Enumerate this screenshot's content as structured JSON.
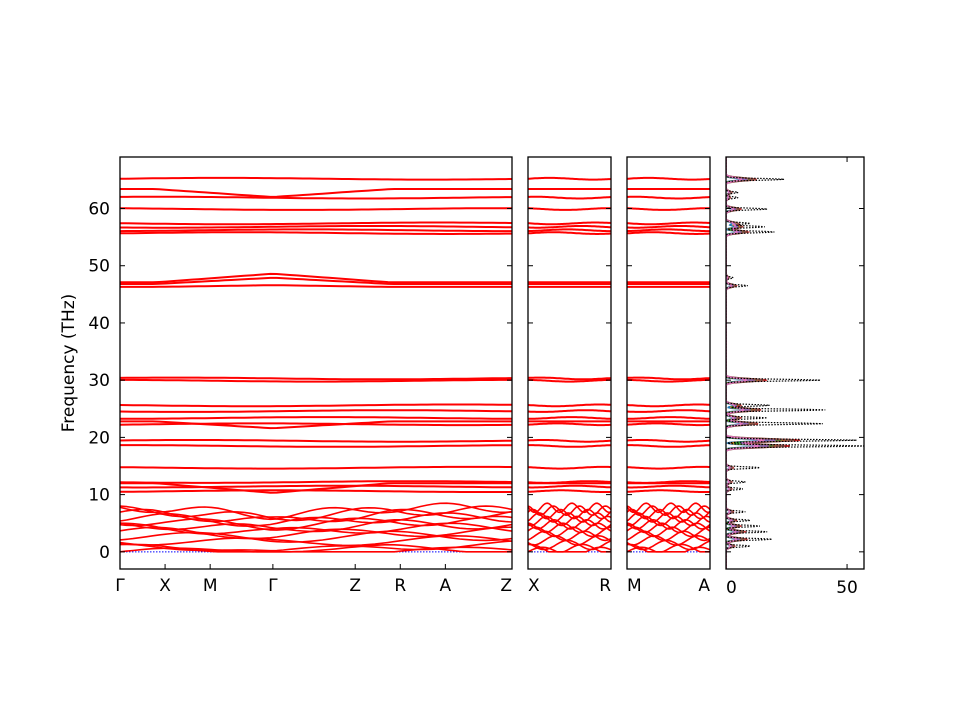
{
  "chart_data": {
    "type": "line",
    "ylabel": "Frequency (THz)",
    "ylim": [
      -3,
      69
    ],
    "yticks": [
      0,
      10,
      20,
      30,
      40,
      50,
      60
    ],
    "band_color": "#ff0000",
    "zero_line_color": "#0000ff",
    "panels": [
      {
        "id": "path-1",
        "xticks": [
          {
            "label": "Γ",
            "pos": 0.0
          },
          {
            "label": "X",
            "pos": 0.115
          },
          {
            "label": "M",
            "pos": 0.23
          },
          {
            "label": "Γ",
            "pos": 0.39
          },
          {
            "label": "Z",
            "pos": 0.6
          },
          {
            "label": "R",
            "pos": 0.715
          },
          {
            "label": "A",
            "pos": 0.83
          },
          {
            "label": "Z",
            "pos": 1.0
          }
        ]
      },
      {
        "id": "path-2",
        "xticks": [
          {
            "label": "X",
            "pos": 0.0
          },
          {
            "label": "R",
            "pos": 1.0
          }
        ]
      },
      {
        "id": "path-3",
        "xticks": [
          {
            "label": "M",
            "pos": 0.0
          },
          {
            "label": "A",
            "pos": 1.0
          }
        ]
      }
    ],
    "bands": {
      "flat": [
        65.2,
        61.9,
        59.9,
        57.4,
        56.8,
        56.2,
        55.7,
        30.3,
        29.9,
        25.6,
        24.6,
        23.4,
        22.3,
        19.4,
        18.5,
        14.7,
        12.2,
        11.4,
        10.6
      ],
      "dispersive": [
        {
          "gamma": 62.0,
          "zone": 63.4
        },
        {
          "gamma": 48.6,
          "zone": 47.1
        },
        {
          "gamma": 47.9,
          "zone": 46.8
        },
        {
          "gamma": 46.6,
          "zone": 46.3
        },
        {
          "gamma": 21.6,
          "zone": 22.8
        },
        {
          "gamma": 10.3,
          "zone": 12.0
        }
      ],
      "low": [
        0.0,
        0.5,
        1.2,
        2.0,
        2.8,
        3.5,
        4.2,
        4.8,
        5.4,
        6.0,
        6.6,
        7.2,
        7.7
      ]
    },
    "dos": {
      "xlim": [
        0,
        57
      ],
      "xticks": [
        0,
        50
      ],
      "total_color": "#000000",
      "partial_colors": [
        "#1f77b4",
        "#ff7f0e",
        "#2ca02c",
        "#d62728",
        "#9467bd",
        "#8c564b",
        "#e377c2"
      ],
      "peaks": [
        {
          "freq": 65.1,
          "total": 24,
          "partial": 21
        },
        {
          "freq": 62.8,
          "total": 5,
          "partial": 4
        },
        {
          "freq": 61.9,
          "total": 5,
          "partial": 3
        },
        {
          "freq": 59.9,
          "total": 17,
          "partial": 10
        },
        {
          "freq": 57.4,
          "total": 10,
          "partial": 8
        },
        {
          "freq": 56.8,
          "total": 16,
          "partial": 11
        },
        {
          "freq": 55.9,
          "total": 20,
          "partial": 15
        },
        {
          "freq": 47.9,
          "total": 3,
          "partial": 2
        },
        {
          "freq": 46.5,
          "total": 9,
          "partial": 7
        },
        {
          "freq": 30.0,
          "total": 39,
          "partial": 28
        },
        {
          "freq": 25.6,
          "total": 18,
          "partial": 10
        },
        {
          "freq": 24.8,
          "total": 41,
          "partial": 24
        },
        {
          "freq": 23.4,
          "total": 17,
          "partial": 10
        },
        {
          "freq": 22.4,
          "total": 40,
          "partial": 22
        },
        {
          "freq": 19.5,
          "total": 54,
          "partial": 51
        },
        {
          "freq": 18.5,
          "total": 57,
          "partial": 44
        },
        {
          "freq": 14.7,
          "total": 14,
          "partial": 5
        },
        {
          "freq": 12.2,
          "total": 8,
          "partial": 4
        },
        {
          "freq": 11.0,
          "total": 7,
          "partial": 4
        },
        {
          "freq": 7.0,
          "total": 8,
          "partial": 5
        },
        {
          "freq": 5.5,
          "total": 10,
          "partial": 7
        },
        {
          "freq": 4.5,
          "total": 14,
          "partial": 10
        },
        {
          "freq": 3.5,
          "total": 17,
          "partial": 13
        },
        {
          "freq": 2.2,
          "total": 19,
          "partial": 14
        },
        {
          "freq": 1.0,
          "total": 10,
          "partial": 6
        }
      ]
    }
  }
}
